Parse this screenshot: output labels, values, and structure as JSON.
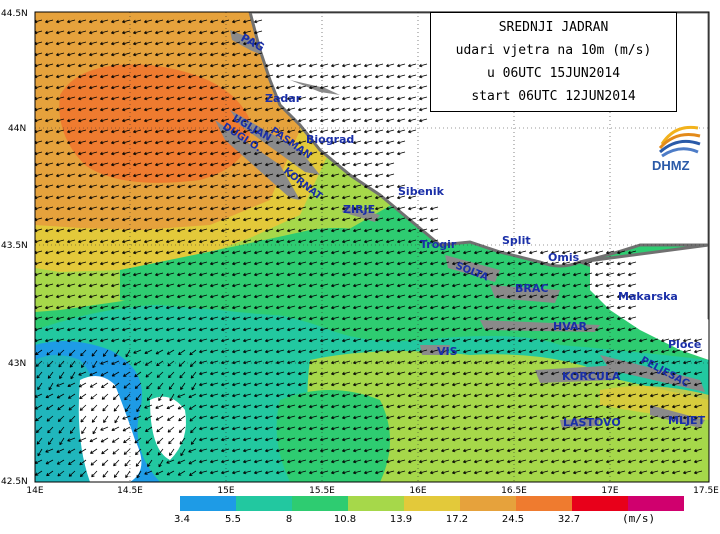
{
  "title": {
    "line1": "SREDNJI JADRAN",
    "line2": "udari vjetra na 10m (m/s)",
    "line3": "u 06UTC 15JUN2014",
    "line4": "start 06UTC 12JUN2014"
  },
  "logo_text": "DHMZ",
  "axes": {
    "x_ticks": [
      "14E",
      "14.5E",
      "15E",
      "15.5E",
      "16E",
      "16.5E",
      "17E",
      "17.5E"
    ],
    "y_ticks": [
      "44.5N",
      "44N",
      "43.5N",
      "43N",
      "42.5N"
    ]
  },
  "legend": {
    "values": [
      "3.4",
      "5.5",
      "8",
      "10.8",
      "13.9",
      "17.2",
      "24.5",
      "32.7"
    ],
    "colors": [
      "#1e9be6",
      "#22c8a0",
      "#2ecc71",
      "#a6d84a",
      "#e3c93a",
      "#e6a23c",
      "#ef7b2f",
      "#e8001a",
      "#d0006e"
    ],
    "units": "(m/s)"
  },
  "places": [
    {
      "name": "PAG"
    },
    {
      "name": "Zadar"
    },
    {
      "name": "UGLJAN"
    },
    {
      "name": "PASMAN"
    },
    {
      "name": "DUGI O."
    },
    {
      "name": "Biograd"
    },
    {
      "name": "KORNAT"
    },
    {
      "name": "Sibenik"
    },
    {
      "name": "ZIRJE"
    },
    {
      "name": "Trogir"
    },
    {
      "name": "Split"
    },
    {
      "name": "Omis"
    },
    {
      "name": "SOLTA"
    },
    {
      "name": "BRAC"
    },
    {
      "name": "Makarska"
    },
    {
      "name": "HVAR"
    },
    {
      "name": "VIS"
    },
    {
      "name": "Ploce"
    },
    {
      "name": "PELJESAC"
    },
    {
      "name": "KORCULA"
    },
    {
      "name": "LASTOVO"
    },
    {
      "name": "MLJET"
    }
  ]
}
